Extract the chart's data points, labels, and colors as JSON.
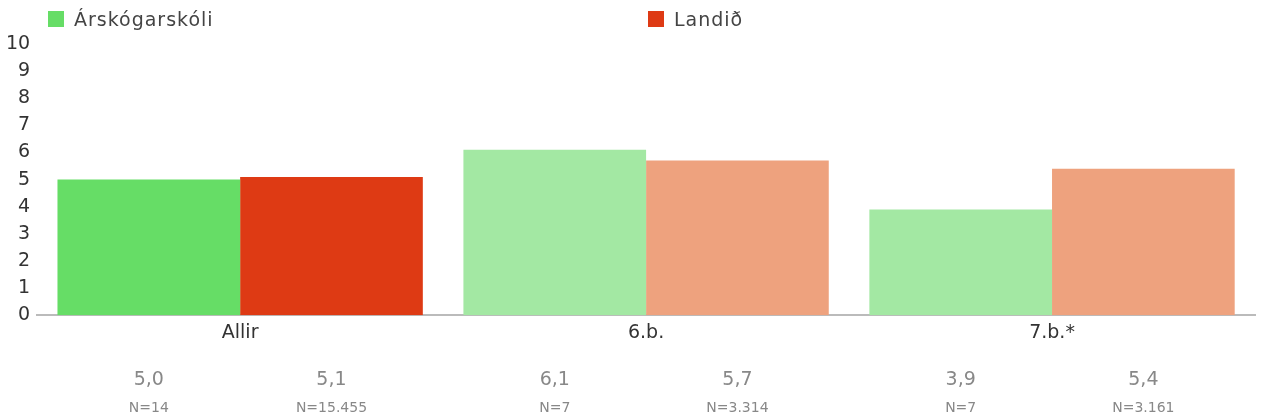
{
  "chart_data": {
    "type": "bar",
    "categories": [
      "Allir",
      "6.b.",
      "7.b.*"
    ],
    "series": [
      {
        "name": "Árskógarskóli",
        "color": "#66dd66",
        "colors": [
          "#66dd66",
          "#a3e8a3",
          "#a3e8a3"
        ],
        "values": [
          5.0,
          6.1,
          3.9
        ],
        "value_labels": [
          "5,0",
          "6,1",
          "3,9"
        ]
      },
      {
        "name": "Landið",
        "color": "#de3a14",
        "colors": [
          "#de3a14",
          "#eea27e",
          "#eea27e"
        ],
        "values": [
          5.1,
          5.7,
          5.4
        ],
        "value_labels": [
          "5,1",
          "5,7",
          "5,4"
        ]
      }
    ],
    "ylim": [
      0,
      10
    ],
    "yticks": [
      0,
      1,
      2,
      3,
      4,
      5,
      6,
      7,
      8,
      9,
      10
    ],
    "grid": false,
    "legend": "top",
    "annotations": [
      "N=14",
      "N=15.455",
      "N=7",
      "N=3.314",
      "N=7",
      "N=3.161"
    ]
  }
}
